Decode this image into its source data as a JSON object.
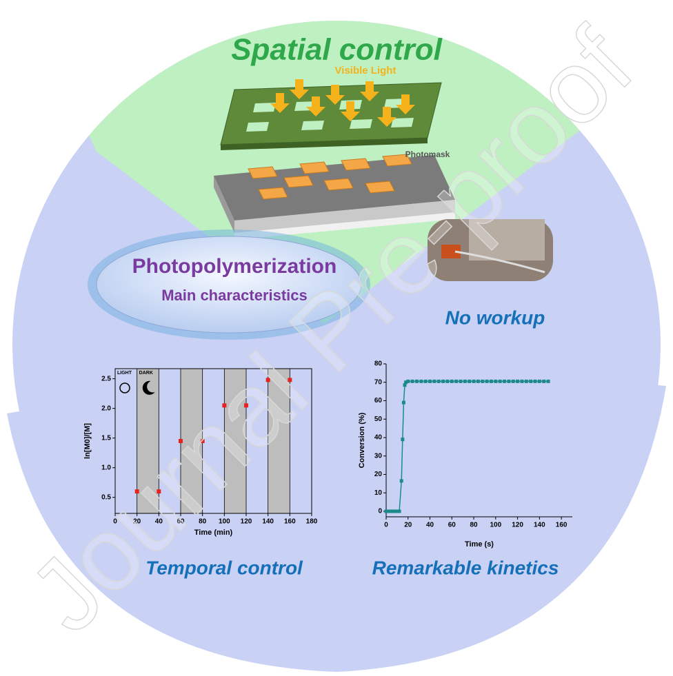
{
  "watermark": "Journal Pre-proof",
  "spatial": {
    "title": "Spatial control",
    "light": "Visible Light",
    "mask": "Photomask"
  },
  "ellipse": {
    "title": "Photopolymerization",
    "subtitle": "Main characteristics"
  },
  "photo_caption": "No workup",
  "captions": [
    "Temporal control",
    "Remarkable kinetics"
  ],
  "chart_data": [
    {
      "type": "scatter",
      "color": "#e8231f",
      "x": [
        20,
        40,
        60,
        80,
        100,
        120,
        140,
        160
      ],
      "values": [
        0.6,
        0.6,
        1.45,
        1.45,
        2.05,
        2.05,
        2.48,
        2.48
      ],
      "shaded": [
        [
          20,
          40
        ],
        [
          60,
          80
        ],
        [
          100,
          120
        ],
        [
          140,
          160
        ]
      ],
      "shade_labels": [
        "LIGHT",
        "DARK"
      ],
      "xlabel": "Time (min)",
      "ylabel": "ln[M0]/[M]",
      "xlim": [
        0,
        180
      ],
      "ylim": [
        0.23,
        2.67
      ],
      "xticks": [
        0,
        20,
        40,
        60,
        80,
        100,
        120,
        140,
        160,
        180
      ],
      "yticks": [
        0.5,
        {
          "value": 1,
          "label": "1.0"
        },
        1.5,
        {
          "value": 2,
          "label": "2.0"
        },
        2.5
      ]
    },
    {
      "type": "line",
      "color": "#1a8a8a",
      "x": [
        0,
        2,
        4,
        6,
        8,
        10,
        12,
        14,
        15,
        16,
        17,
        18,
        20,
        24,
        28,
        32,
        36,
        40,
        44,
        48,
        52,
        56,
        60,
        64,
        68,
        72,
        76,
        80,
        84,
        88,
        92,
        96,
        100,
        104,
        108,
        112,
        116,
        120,
        124,
        128,
        132,
        136,
        140,
        144,
        148
      ],
      "values": [
        0,
        0,
        0,
        0,
        0,
        0,
        0,
        16.5,
        39,
        59,
        68.5,
        70,
        70.5,
        70.5,
        70.5,
        70.5,
        70.5,
        70.5,
        70.5,
        70.5,
        70.5,
        70.5,
        70.5,
        70.5,
        70.5,
        70.5,
        70.5,
        70.5,
        70.5,
        70.5,
        70.5,
        70.5,
        70.5,
        70.5,
        70.5,
        70.5,
        70.5,
        70.5,
        70.5,
        70.5,
        70.5,
        70.5,
        70.5,
        70.5,
        70.5
      ],
      "xlabel": "Time (s)",
      "ylabel": "Conversion (%)",
      "xlim": [
        0,
        170
      ],
      "ylim": [
        -3,
        80
      ],
      "xticks": [
        0,
        20,
        40,
        60,
        80,
        100,
        120,
        140,
        160
      ],
      "yticks": [
        0,
        10,
        20,
        30,
        40,
        50,
        60,
        70,
        80
      ]
    }
  ]
}
